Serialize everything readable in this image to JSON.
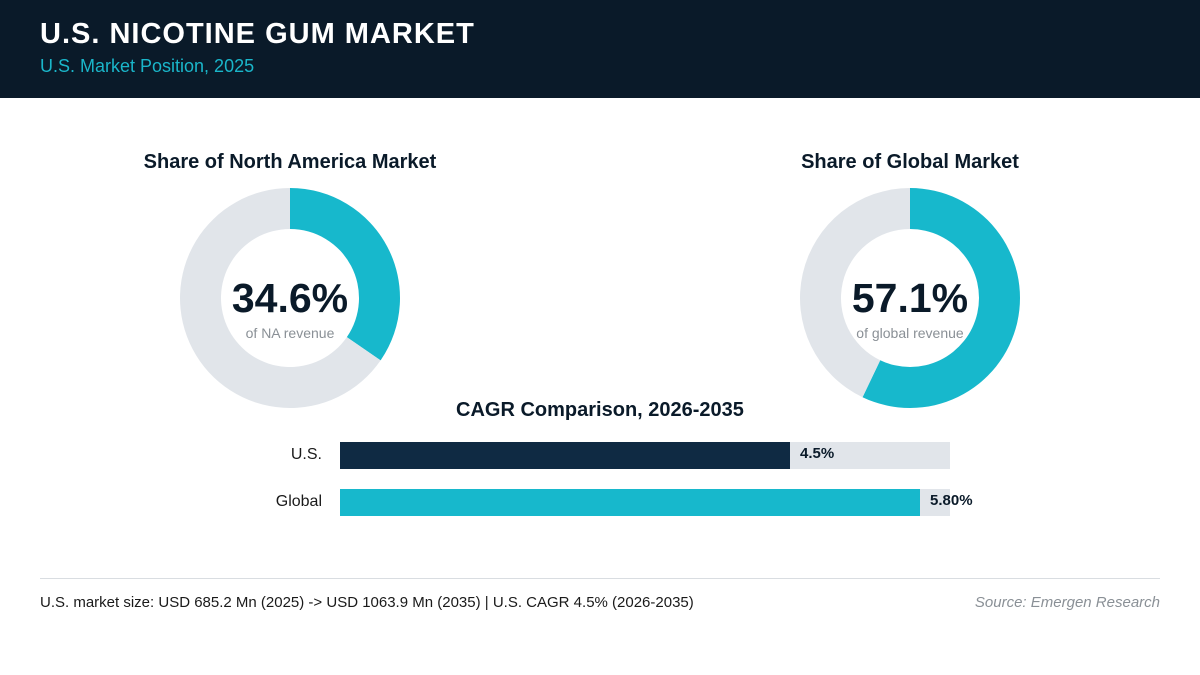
{
  "header": {
    "title": "U.S. NICOTINE GUM MARKET",
    "subtitle": "U.S. Market Position, 2025"
  },
  "colors": {
    "navy": "#0a1a29",
    "teal": "#17b8cc",
    "bar_navy": "#0f2a43",
    "track": "#e1e5ea"
  },
  "chart_data": [
    {
      "type": "pie",
      "title": "Share of North America Market",
      "center_value": "34.6%",
      "center_caption": "of NA revenue",
      "values": [
        34.6,
        65.4
      ],
      "colors": [
        "#17b8cc",
        "#e1e5ea"
      ]
    },
    {
      "type": "pie",
      "title": "Share of Global Market",
      "center_value": "57.1%",
      "center_caption": "of global revenue",
      "values": [
        57.1,
        42.9
      ],
      "colors": [
        "#17b8cc",
        "#e1e5ea"
      ]
    },
    {
      "type": "bar",
      "orientation": "horizontal",
      "title": "CAGR Comparison, 2026-2035",
      "categories": [
        "U.S.",
        "Global"
      ],
      "values": [
        4.5,
        5.8
      ],
      "value_labels": [
        "4.5%",
        "5.80%"
      ],
      "colors": [
        "#0f2a43",
        "#17b8cc"
      ],
      "xlim": [
        0,
        6.1
      ]
    }
  ],
  "footer": {
    "note": "U.S. market size: USD 685.2 Mn (2025) -> USD 1063.9 Mn (2035)  |  U.S. CAGR 4.5% (2026-2035)",
    "source": "Source: Emergen Research"
  }
}
